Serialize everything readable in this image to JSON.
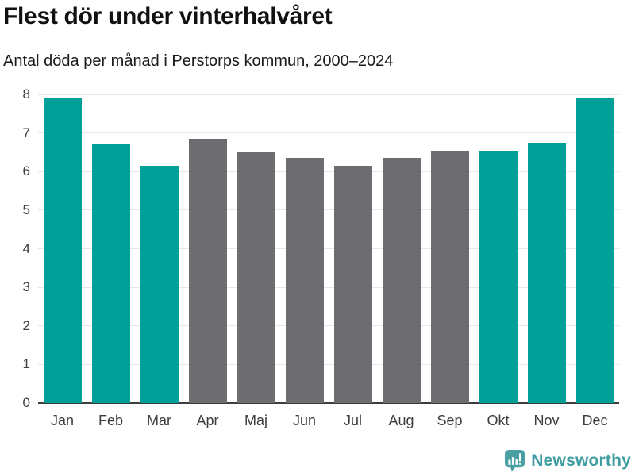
{
  "header": {
    "title": "Flest dör under vinterhalvåret",
    "subtitle": "Antal döda per månad i Perstorps kommun, 2000–2024"
  },
  "chart_data": {
    "type": "bar",
    "title": "Flest dör under vinterhalvåret",
    "subtitle": "Antal döda per månad i Perstorps kommun, 2000–2024",
    "categories": [
      "Jan",
      "Feb",
      "Mar",
      "Apr",
      "Maj",
      "Jun",
      "Jul",
      "Aug",
      "Sep",
      "Okt",
      "Nov",
      "Dec"
    ],
    "values": [
      7.9,
      6.7,
      6.15,
      6.85,
      6.5,
      6.35,
      6.15,
      6.35,
      6.55,
      6.55,
      6.75,
      7.9
    ],
    "highlighted": [
      true,
      true,
      true,
      false,
      false,
      false,
      false,
      false,
      false,
      true,
      true,
      true
    ],
    "xlabel": "",
    "ylabel": "",
    "ylim": [
      0,
      8
    ],
    "yticks": [
      0,
      1,
      2,
      3,
      4,
      5,
      6,
      7,
      8
    ],
    "grid": true,
    "legend": "none",
    "colors": {
      "highlight": "#00a099",
      "muted": "#6d6d71",
      "baseline": "#3d3d3d",
      "gridline": "#e7e7e7"
    }
  },
  "footer": {
    "brand": "Newsworthy",
    "brand_color": "#3f9da1",
    "logo_icon": "speech-bubble-bar-chart-icon"
  }
}
